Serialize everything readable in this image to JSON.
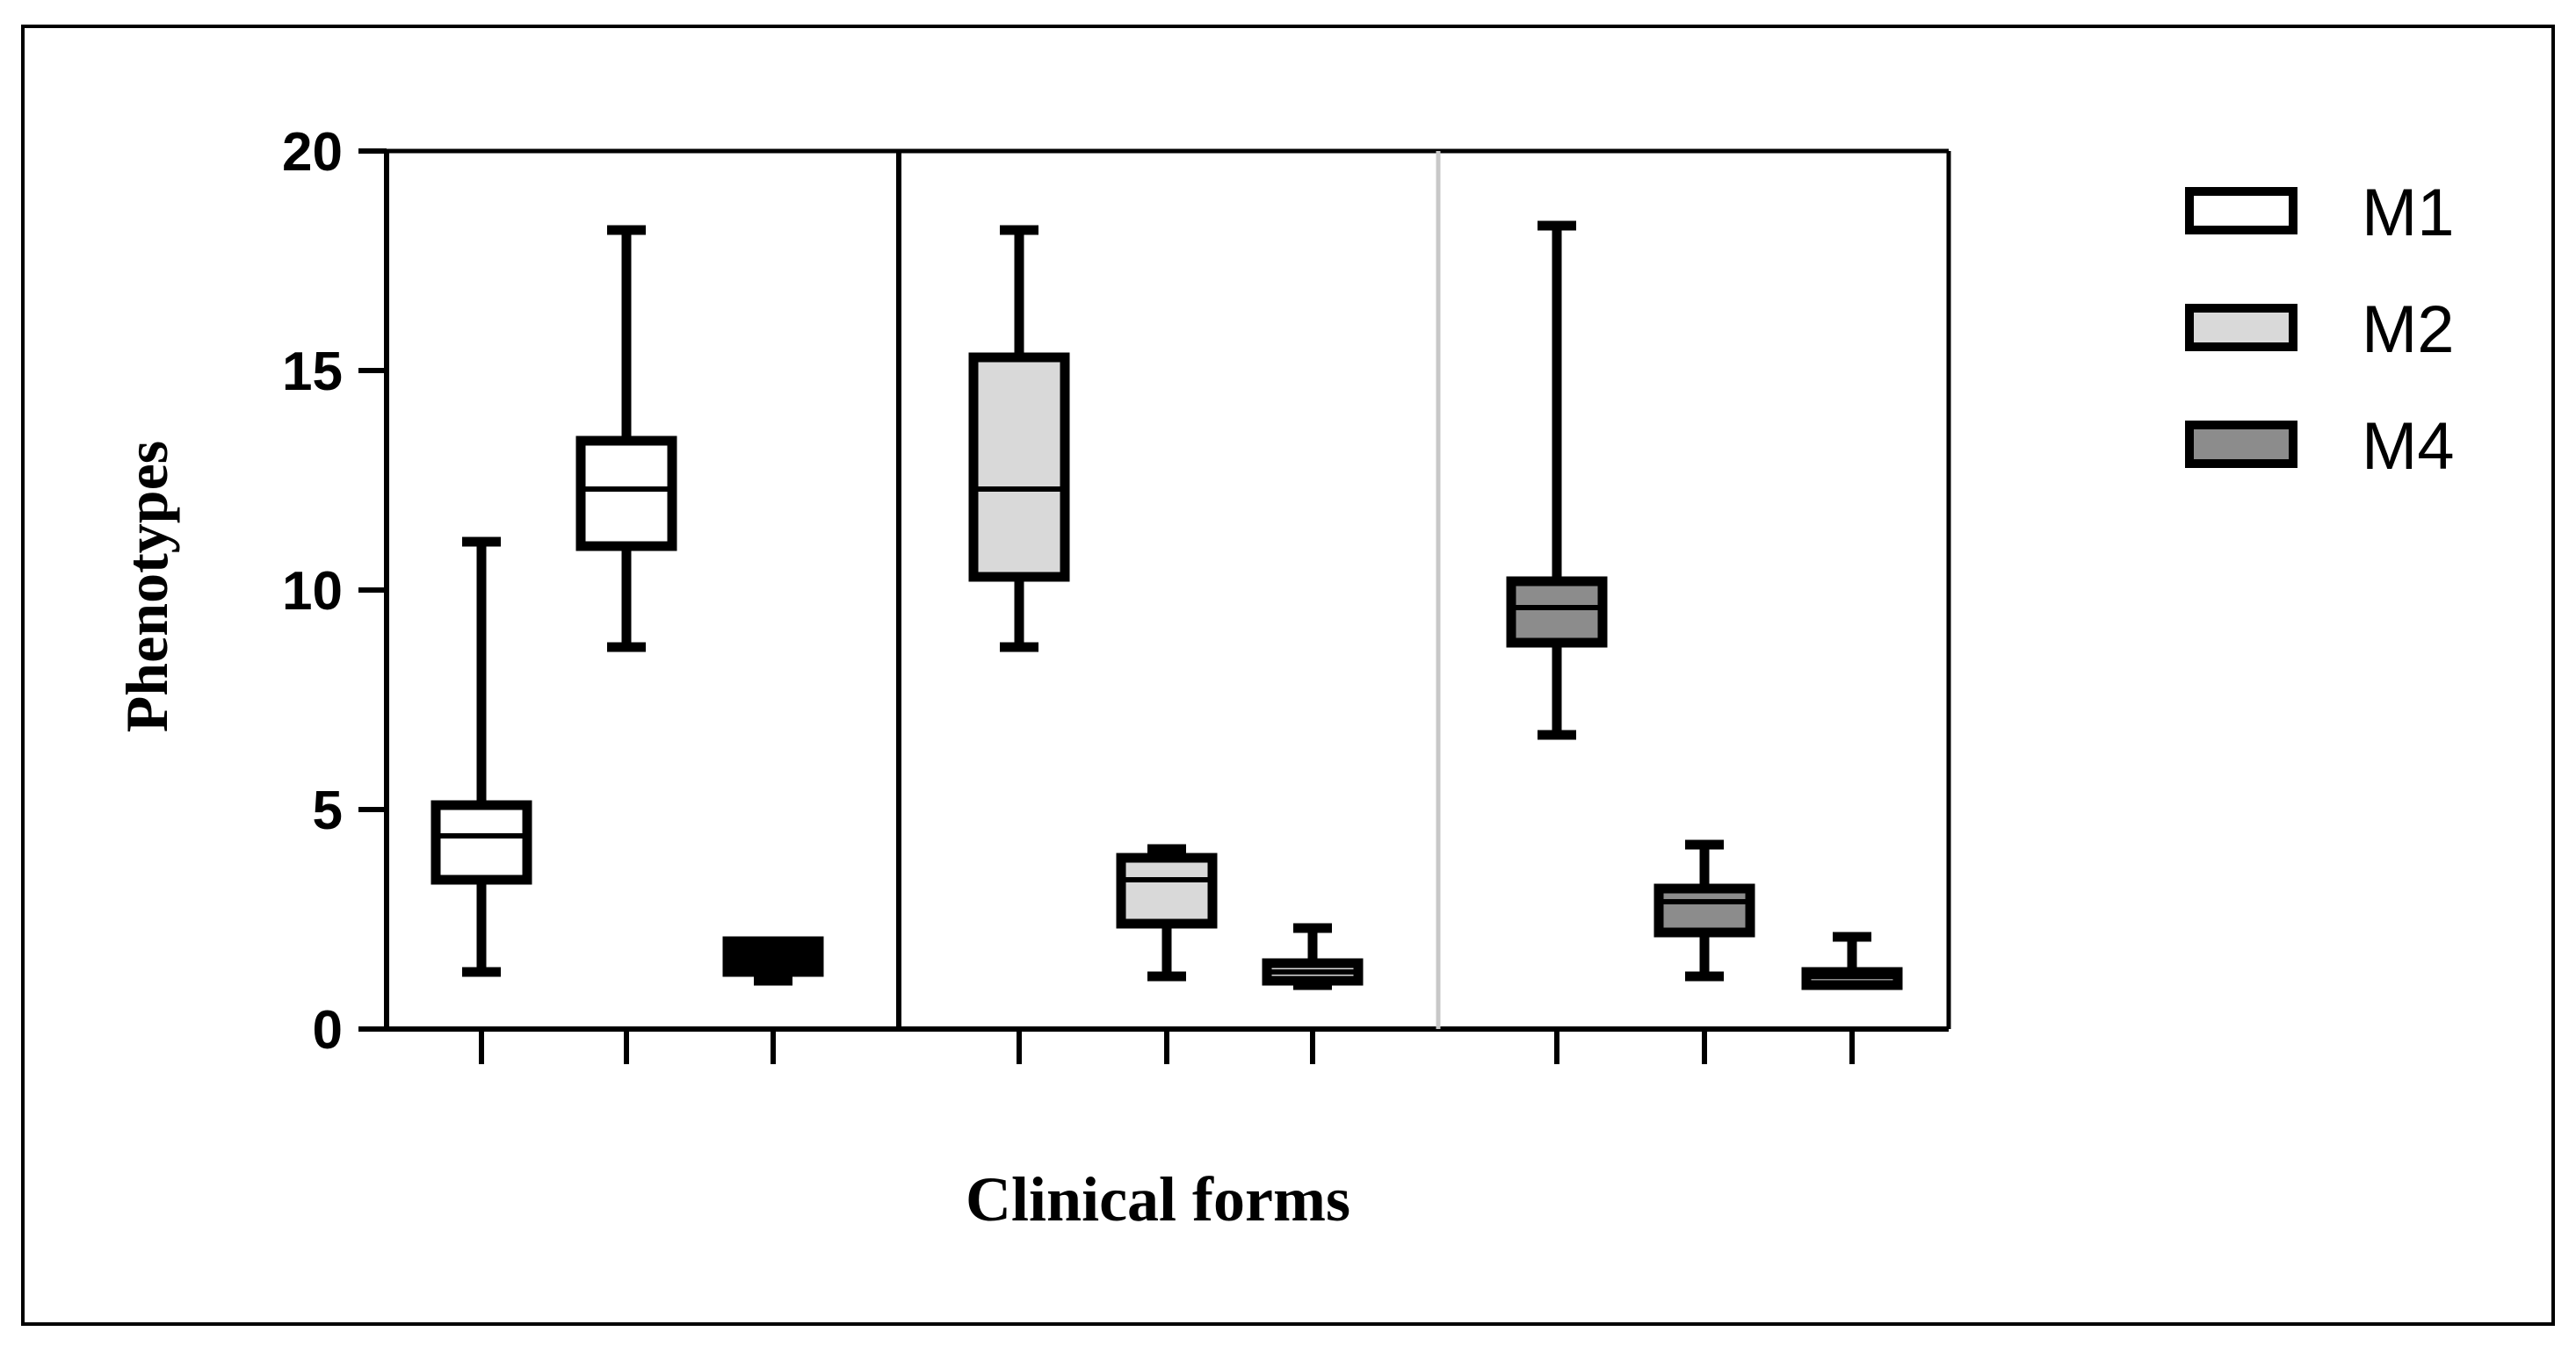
{
  "chart_data": {
    "type": "box",
    "xlabel": "Clinical forms",
    "ylabel": "Phenotypes",
    "ylim": [
      0,
      20
    ],
    "yticks": [
      "0",
      "5",
      "10",
      "15",
      "20"
    ],
    "grid": false,
    "legend_position": "right",
    "series": [
      {
        "name": "M1",
        "color": "#ffffff"
      },
      {
        "name": "M2",
        "color": "#d9d9d9"
      },
      {
        "name": "M4",
        "color": "#8c8c8c"
      }
    ],
    "panels": [
      {
        "boxes": [
          {
            "series": "M1",
            "min": 1.3,
            "q1": 3.4,
            "median": 4.4,
            "q3": 5.1,
            "max": 11.1
          },
          {
            "series": "M1",
            "min": 8.7,
            "q1": 11.0,
            "median": 12.3,
            "q3": 13.4,
            "max": 18.2
          },
          {
            "series": "M1",
            "min": 1.1,
            "q1": 1.3,
            "median": 1.6,
            "q3": 2.0,
            "max": 2.0
          }
        ]
      },
      {
        "boxes": [
          {
            "series": "M2",
            "min": 8.7,
            "q1": 10.3,
            "median": 12.3,
            "q3": 15.3,
            "max": 18.2
          },
          {
            "series": "M2",
            "min": 1.2,
            "q1": 2.4,
            "median": 3.4,
            "q3": 3.9,
            "max": 4.1
          },
          {
            "series": "M2",
            "min": 1.0,
            "q1": 1.1,
            "median": 1.3,
            "q3": 1.5,
            "max": 2.3
          }
        ]
      },
      {
        "boxes": [
          {
            "series": "M4",
            "min": 6.7,
            "q1": 8.8,
            "median": 9.6,
            "q3": 10.2,
            "max": 18.3
          },
          {
            "series": "M4",
            "min": 1.2,
            "q1": 2.2,
            "median": 2.9,
            "q3": 3.2,
            "max": 4.2
          },
          {
            "series": "M4",
            "min": 1.0,
            "q1": 1.0,
            "median": 1.2,
            "q3": 1.3,
            "max": 2.1
          }
        ]
      }
    ]
  }
}
